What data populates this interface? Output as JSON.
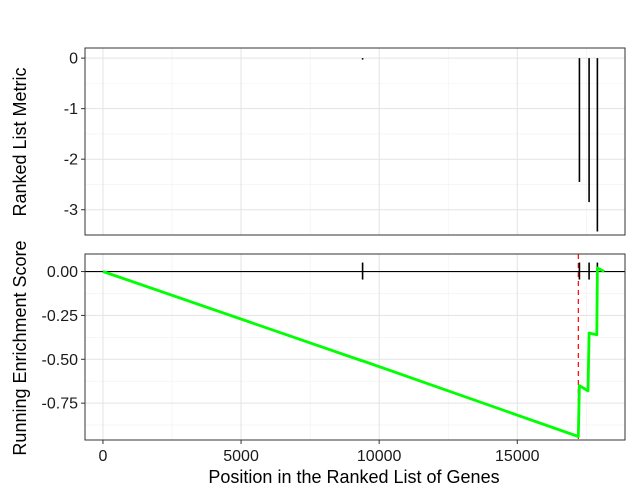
{
  "chart_data": [
    {
      "type": "bar",
      "panel": "top",
      "ylabel": "Ranked List Metric",
      "xlim": [
        -650,
        18900
      ],
      "ylim": [
        -3.5,
        0.2
      ],
      "xticks": [
        0,
        5000,
        10000,
        15000
      ],
      "yticks": [
        0,
        -1,
        -2,
        -3
      ],
      "ytick_labels": [
        "0",
        "-1",
        "-2",
        "-3"
      ],
      "grid": true,
      "bars": [
        {
          "x": 9400,
          "value": -0.03
        },
        {
          "x": 17250,
          "value": -2.45
        },
        {
          "x": 17600,
          "value": -2.85
        },
        {
          "x": 17900,
          "value": -3.43
        }
      ],
      "colors": {
        "bar": "#000000"
      }
    },
    {
      "type": "line",
      "panel": "bottom",
      "xlabel": "Position in the Ranked List of Genes",
      "ylabel": "Running Enrichment Score",
      "xlim": [
        -650,
        18900
      ],
      "ylim": [
        -0.96,
        0.1
      ],
      "xticks": [
        0,
        5000,
        10000,
        15000
      ],
      "xtick_labels": [
        "0",
        "5000",
        "10000",
        "15000"
      ],
      "yticks": [
        0,
        -0.25,
        -0.5,
        -0.75
      ],
      "ytick_labels": [
        "0.00",
        "-0.25",
        "-0.50",
        "-0.75"
      ],
      "grid": true,
      "series": [
        {
          "x": [
            0,
            9400,
            9420,
            17210,
            17250,
            17560,
            17600,
            17880,
            17900,
            18150
          ],
          "y": [
            0,
            -0.51,
            -0.51,
            -0.94,
            -0.65,
            -0.68,
            -0.35,
            -0.36,
            0.02,
            0.0
          ]
        }
      ],
      "zero_line": 0,
      "hit_ticks_x": [
        9400,
        17250,
        17600,
        17900
      ],
      "max_deviation_x": 17210,
      "colors": {
        "line": "#00ff00",
        "hits": "#000000",
        "vline": "#ff0000",
        "zero": "#000000"
      }
    }
  ]
}
